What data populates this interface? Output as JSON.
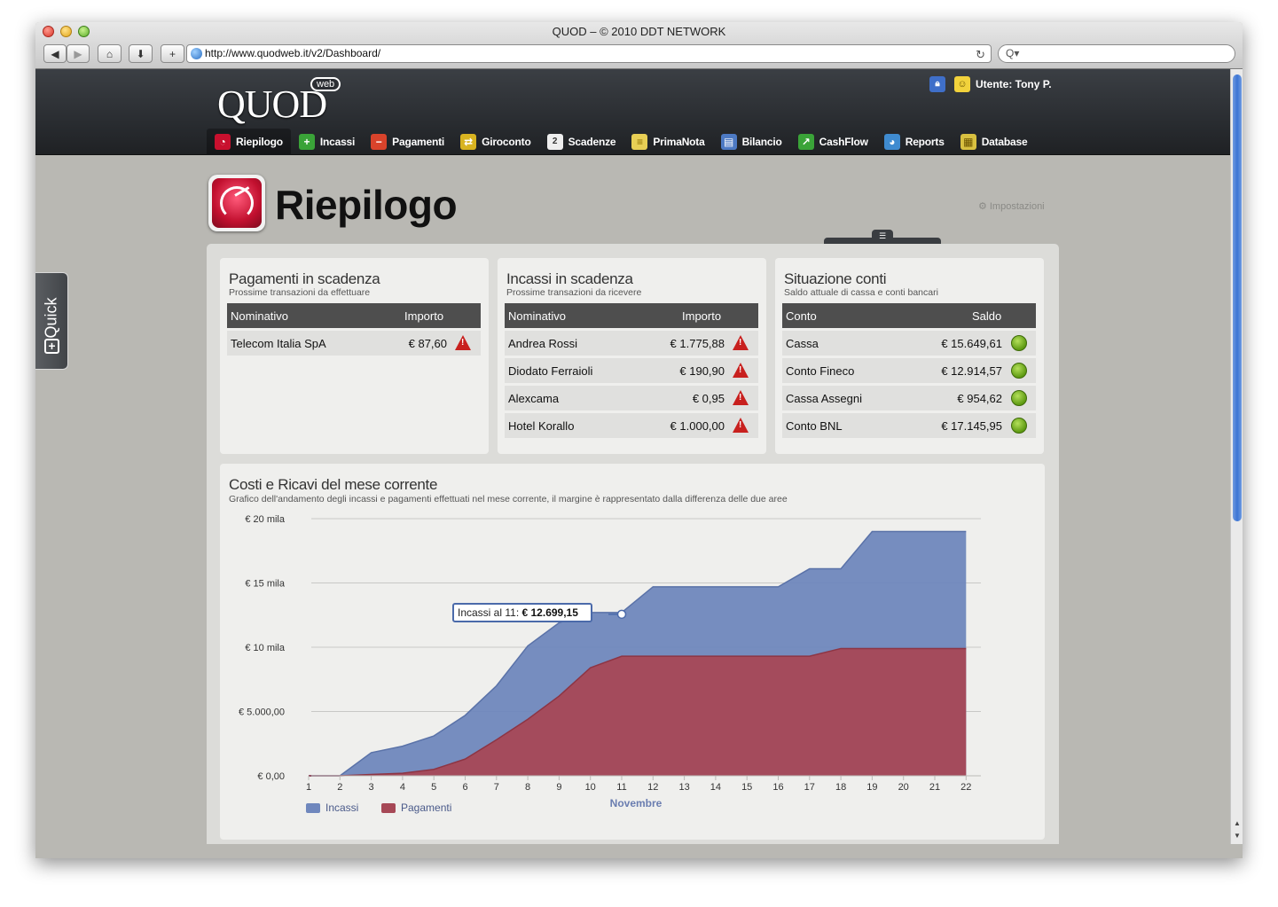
{
  "browser": {
    "window_title": "QUOD – © 2010 DDT NETWORK",
    "url": "http://www.quodweb.it/v2/Dashboard/",
    "search_placeholder": "Q▾"
  },
  "app": {
    "logo": "QUOD",
    "logo_badge": "web",
    "user_label": "Utente: Tony P.",
    "nav": [
      {
        "label": "Riepilogo",
        "icon": "gauge-icon",
        "color": "#c8102e"
      },
      {
        "label": "Incassi",
        "icon": "plus-icon",
        "color": "#3aa338"
      },
      {
        "label": "Pagamenti",
        "icon": "minus-icon",
        "color": "#d9432b"
      },
      {
        "label": "Giroconto",
        "icon": "transfer-icon",
        "color": "#d8b320"
      },
      {
        "label": "Scadenze",
        "icon": "calendar-icon",
        "color": "#eeeeee"
      },
      {
        "label": "PrimaNota",
        "icon": "notepad-icon",
        "color": "#e8cf55"
      },
      {
        "label": "Bilancio",
        "icon": "balance-icon",
        "color": "#4d7ac4"
      },
      {
        "label": "CashFlow",
        "icon": "chart-line-icon",
        "color": "#3aa338"
      },
      {
        "label": "Reports",
        "icon": "pie-icon",
        "color": "#3f8bd0"
      },
      {
        "label": "Database",
        "icon": "database-icon",
        "color": "#d8c040"
      }
    ]
  },
  "page": {
    "title": "Riepilogo",
    "settings_label": "Impostazioni",
    "quick_label": "Quick"
  },
  "pagamenti": {
    "title": "Pagamenti in scadenza",
    "subtitle": "Prossime transazioni da effettuare",
    "col_name": "Nominativo",
    "col_amount": "Importo",
    "rows": [
      {
        "name": "Telecom Italia SpA",
        "amount": "€ 87,60"
      }
    ]
  },
  "incassi": {
    "title": "Incassi in scadenza",
    "subtitle": "Prossime transazioni da ricevere",
    "col_name": "Nominativo",
    "col_amount": "Importo",
    "rows": [
      {
        "name": "Andrea Rossi",
        "amount": "€ 1.775,88"
      },
      {
        "name": "Diodato Ferraioli",
        "amount": "€ 190,90"
      },
      {
        "name": "Alexcama",
        "amount": "€ 0,95"
      },
      {
        "name": "Hotel Korallo",
        "amount": "€ 1.000,00"
      }
    ]
  },
  "conti": {
    "title": "Situazione conti",
    "subtitle": "Saldo attuale di cassa e conti bancari",
    "col_name": "Conto",
    "col_amount": "Saldo",
    "rows": [
      {
        "name": "Cassa",
        "amount": "€ 15.649,61"
      },
      {
        "name": "Conto Fineco",
        "amount": "€ 12.914,57"
      },
      {
        "name": "Cassa Assegni",
        "amount": "€ 954,62"
      },
      {
        "name": "Conto BNL",
        "amount": "€ 17.145,95"
      }
    ]
  },
  "chart_panel": {
    "title": "Costi e Ricavi del mese corrente",
    "subtitle": "Grafico dell'andamento degli incassi e pagamenti effettuati nel mese corrente, il margine è rappresentato dalla differenza delle due aree",
    "tooltip_label": "Incassi al 11:",
    "tooltip_value": "€ 12.699,15"
  },
  "chart_data": {
    "type": "area",
    "xlabel": "Novembre",
    "x": [
      1,
      2,
      3,
      4,
      5,
      6,
      7,
      8,
      9,
      10,
      11,
      12,
      13,
      14,
      15,
      16,
      17,
      18,
      19,
      20,
      21,
      22
    ],
    "ylim": [
      0,
      20000
    ],
    "y_ticks": [
      0,
      5000,
      10000,
      15000,
      20000
    ],
    "y_tick_labels": [
      "€ 0,00",
      "€ 5.000,00",
      "€ 10 mila",
      "€ 15 mila",
      "€ 20 mila"
    ],
    "legend_position": "bottom-left",
    "grid": true,
    "series": [
      {
        "name": "Incassi",
        "color": "#6f87bd",
        "values": [
          0,
          0,
          1800,
          2300,
          3100,
          4700,
          7000,
          10100,
          11900,
          12700,
          12700,
          14700,
          14700,
          14700,
          14700,
          14700,
          16100,
          16100,
          19000,
          19000,
          19000,
          19000
        ]
      },
      {
        "name": "Pagamenti",
        "color": "#a64856",
        "values": [
          0,
          0,
          100,
          200,
          500,
          1300,
          2800,
          4400,
          6200,
          8400,
          9300,
          9300,
          9300,
          9300,
          9300,
          9300,
          9300,
          9900,
          9900,
          9900,
          9900,
          9900
        ]
      }
    ]
  }
}
